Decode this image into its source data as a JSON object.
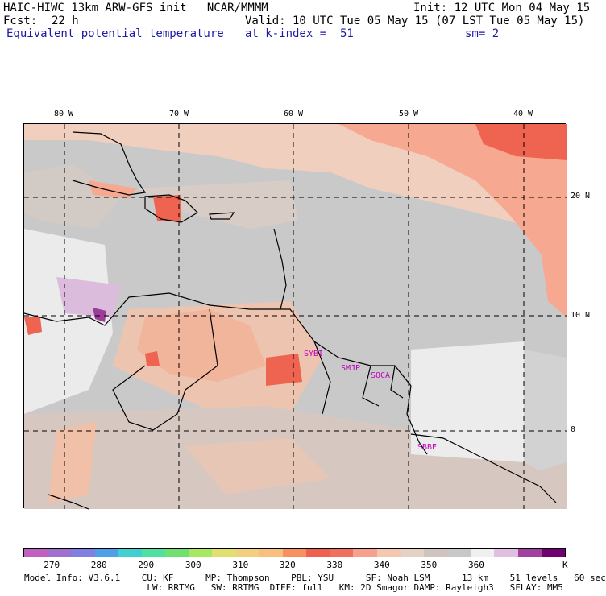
{
  "header": {
    "title": "HAIC-HIWC 13km ARW-GFS init   NCAR/MMMM",
    "fcst_label": "Fcst:",
    "fcst_value": "22 h",
    "field": "Equivalent potential temperature",
    "init": "Init: 12 UTC Mon 04 May 15",
    "valid": "Valid: 10 UTC Tue 05 May 15 (07 LST Tue 05 May 15)",
    "level": "at k-index =  51",
    "smooth": "sm= 2"
  },
  "map": {
    "lon_labels": [
      "80 W",
      "70 W",
      "60 W",
      "50 W",
      "40 W"
    ],
    "lat_labels": [
      "20 N",
      "10 N",
      "0"
    ],
    "stations": [
      "SYBI",
      "SMJP",
      "SOCA",
      "SBBE"
    ]
  },
  "colorbar": {
    "colors": [
      "#c060c0",
      "#a070d0",
      "#8080e0",
      "#50a0e8",
      "#40d0d0",
      "#50e0a0",
      "#70e070",
      "#a8e860",
      "#e0e070",
      "#f0d080",
      "#f8c080",
      "#f89060",
      "#f06050",
      "#f07060",
      "#f8a090",
      "#f4c8b0",
      "#e6d2c4",
      "#d0c4be",
      "#c8c8c8",
      "#f0f0f0",
      "#e0c0e0",
      "#a040a0",
      "#700070"
    ],
    "tick_labels": [
      "270",
      "280",
      "290",
      "300",
      "310",
      "320",
      "330",
      "340",
      "350",
      "360"
    ],
    "unit": "K"
  },
  "footer": {
    "line1": "Model Info: V3.6.1    CU: KF      MP: Thompson    PBL: YSU      SF: Noah LSM      13 km    51 levels   60 sec",
    "line2": "                       LW: RRTMG   SW: RRTMG  DIFF: full   KM: 2D Smagor DAMP: Rayleigh3   SFLAY: MM5"
  }
}
